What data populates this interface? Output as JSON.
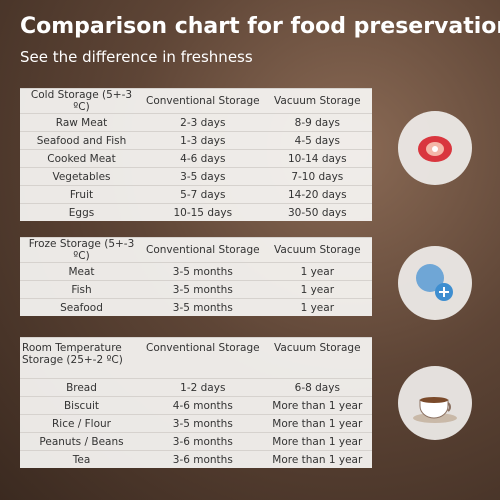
{
  "header": {
    "title": "Comparison chart for food preservation",
    "subtitle": "See the difference in freshness"
  },
  "tables": [
    {
      "headers": [
        "Cold Storage (5+-3 ºC)",
        "Conventional Storage",
        "Vacuum Storage"
      ],
      "rows": [
        [
          "Raw Meat",
          "2-3 days",
          "8-9 days"
        ],
        [
          "Seafood and Fish",
          "1-3 days",
          "4-5 days"
        ],
        [
          "Cooked Meat",
          "4-6 days",
          "10-14 days"
        ],
        [
          "Vegetables",
          "3-5 days",
          "7-10 days"
        ],
        [
          "Fruit",
          "5-7 days",
          "14-20 days"
        ],
        [
          "Eggs",
          "10-15 days",
          "30-50 days"
        ]
      ]
    },
    {
      "headers": [
        "Froze Storage (5+-3 ºC)",
        "Conventional Storage",
        "Vacuum Storage"
      ],
      "rows": [
        [
          "Meat",
          "3-5 months",
          "1 year"
        ],
        [
          "Fish",
          "3-5 months",
          "1 year"
        ],
        [
          "Seafood",
          "3-5 months",
          "1 year"
        ]
      ]
    },
    {
      "headers": [
        "Room Temperature Storage (25+-2 ºC)",
        "Conventional Storage",
        "Vacuum Storage"
      ],
      "rows": [
        [
          "Bread",
          "1-2 days",
          "6-8 days"
        ],
        [
          "Biscuit",
          "4-6 months",
          "More than 1 year"
        ],
        [
          "Rice / Flour",
          "3-5 months",
          "More than 1 year"
        ],
        [
          "Peanuts / Beans",
          "3-6 months",
          "More than 1 year"
        ],
        [
          "Tea",
          "3-6 months",
          "More than 1 year"
        ]
      ]
    }
  ]
}
